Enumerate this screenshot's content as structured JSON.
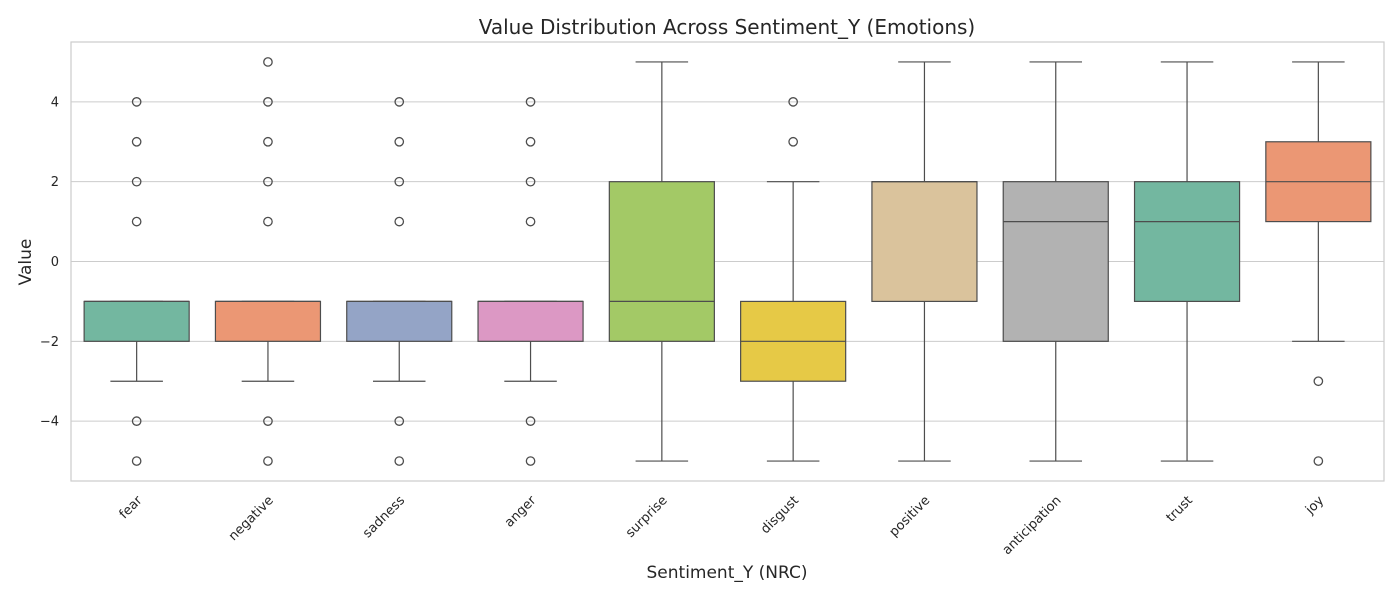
{
  "chart_data": {
    "type": "box",
    "title": "Value Distribution Across Sentiment_Y (Emotions)",
    "xlabel": "Sentiment_Y (NRC)",
    "ylabel": "Value",
    "ylim": [
      -5.5,
      5.5
    ],
    "yticks": [
      -4,
      -2,
      0,
      2,
      4
    ],
    "y_tick_labels": [
      "−4",
      "−2",
      "0",
      "2",
      "4"
    ],
    "grid": "horizontal",
    "categories": [
      "fear",
      "negative",
      "sadness",
      "anger",
      "surprise",
      "disgust",
      "positive",
      "anticipation",
      "trust",
      "joy"
    ],
    "boxes": [
      {
        "name": "fear",
        "color": "#73b7a0",
        "q1": -2,
        "median": -1,
        "q3": -1,
        "whisker_low": -3,
        "whisker_high": -1,
        "outliers": [
          1,
          2,
          3,
          4,
          -4,
          -5
        ]
      },
      {
        "name": "negative",
        "color": "#eb9774",
        "q1": -2,
        "median": -1,
        "q3": -1,
        "whisker_low": -3,
        "whisker_high": -1,
        "outliers": [
          1,
          2,
          3,
          4,
          5,
          -4,
          -5
        ]
      },
      {
        "name": "sadness",
        "color": "#94a4c6",
        "q1": -2,
        "median": -1,
        "q3": -1,
        "whisker_low": -3,
        "whisker_high": -1,
        "outliers": [
          1,
          2,
          3,
          4,
          -4,
          -5
        ]
      },
      {
        "name": "anger",
        "color": "#dc98c4",
        "q1": -2,
        "median": -1,
        "q3": -1,
        "whisker_low": -3,
        "whisker_high": -1,
        "outliers": [
          1,
          2,
          3,
          4,
          -4,
          -5
        ]
      },
      {
        "name": "surprise",
        "color": "#a3c966",
        "q1": -2,
        "median": -1,
        "q3": 2,
        "whisker_low": -5,
        "whisker_high": 5,
        "outliers": []
      },
      {
        "name": "disgust",
        "color": "#e6c946",
        "q1": -3,
        "median": -2,
        "q3": -1,
        "whisker_low": -5,
        "whisker_high": 2,
        "outliers": [
          3,
          4
        ]
      },
      {
        "name": "positive",
        "color": "#dac39c",
        "q1": -1,
        "median": 2,
        "q3": 2,
        "whisker_low": -5,
        "whisker_high": 5,
        "outliers": []
      },
      {
        "name": "anticipation",
        "color": "#b2b2b2",
        "q1": -2,
        "median": 1,
        "q3": 2,
        "whisker_low": -5,
        "whisker_high": 5,
        "outliers": []
      },
      {
        "name": "trust",
        "color": "#73b7a0",
        "q1": -1,
        "median": 1,
        "q3": 2,
        "whisker_low": -5,
        "whisker_high": 5,
        "outliers": []
      },
      {
        "name": "joy",
        "color": "#eb9774",
        "q1": 1,
        "median": 2,
        "q3": 3,
        "whisker_low": -2,
        "whisker_high": 5,
        "outliers": [
          -3,
          -5
        ]
      }
    ],
    "colors": {
      "axis_frame": "#cccccc",
      "grid": "#cccccc",
      "line": "#4d4d4d",
      "text": "#262626"
    }
  }
}
